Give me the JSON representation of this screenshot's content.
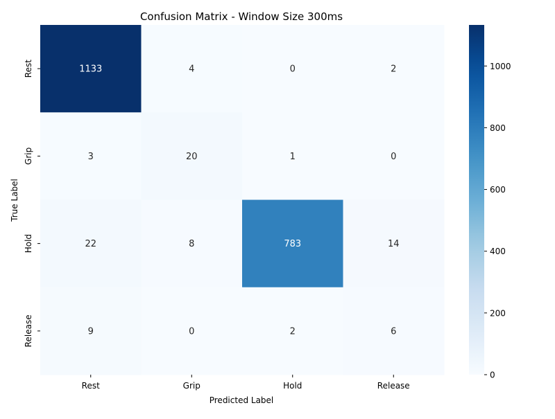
{
  "chart_data": {
    "type": "heatmap",
    "title": "Confusion Matrix - Window Size 300ms",
    "xlabel": "Predicted Label",
    "ylabel": "True Label",
    "x_categories": [
      "Rest",
      "Grip",
      "Hold",
      "Release"
    ],
    "y_categories": [
      "Rest",
      "Grip",
      "Hold",
      "Release"
    ],
    "values": [
      [
        1133,
        4,
        0,
        2
      ],
      [
        3,
        20,
        1,
        0
      ],
      [
        22,
        8,
        783,
        14
      ],
      [
        9,
        0,
        2,
        6
      ]
    ],
    "colorbar": {
      "min": 0,
      "max": 1133,
      "ticks": [
        0,
        200,
        400,
        600,
        800,
        1000
      ]
    },
    "colormap": "Blues",
    "colors": {
      "low": "#f7fbff",
      "high": "#08306b",
      "text_dark": "#262626",
      "text_light": "#ffffff"
    }
  }
}
